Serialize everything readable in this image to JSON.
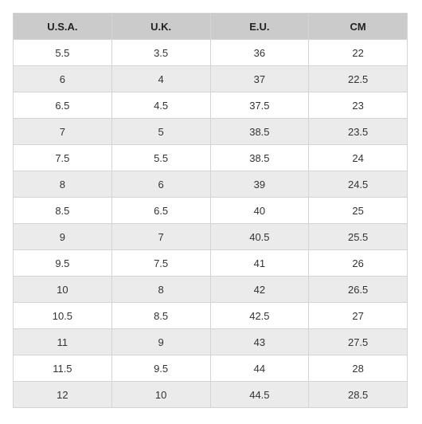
{
  "table": {
    "headers": [
      "U.S.A.",
      "U.K.",
      "E.U.",
      "CM"
    ],
    "rows": [
      [
        "5.5",
        "3.5",
        "36",
        "22"
      ],
      [
        "6",
        "4",
        "37",
        "22.5"
      ],
      [
        "6.5",
        "4.5",
        "37.5",
        "23"
      ],
      [
        "7",
        "5",
        "38.5",
        "23.5"
      ],
      [
        "7.5",
        "5.5",
        "38.5",
        "24"
      ],
      [
        "8",
        "6",
        "39",
        "24.5"
      ],
      [
        "8.5",
        "6.5",
        "40",
        "25"
      ],
      [
        "9",
        "7",
        "40.5",
        "25.5"
      ],
      [
        "9.5",
        "7.5",
        "41",
        "26"
      ],
      [
        "10",
        "8",
        "42",
        "26.5"
      ],
      [
        "10.5",
        "8.5",
        "42.5",
        "27"
      ],
      [
        "11",
        "9",
        "43",
        "27.5"
      ],
      [
        "11.5",
        "9.5",
        "44",
        "28"
      ],
      [
        "12",
        "10",
        "44.5",
        "28.5"
      ]
    ]
  },
  "colors": {
    "header_bg": "#cbcbcb",
    "stripe_bg": "#ebebeb",
    "row_bg": "#ffffff",
    "border": "#d4d4d4"
  }
}
